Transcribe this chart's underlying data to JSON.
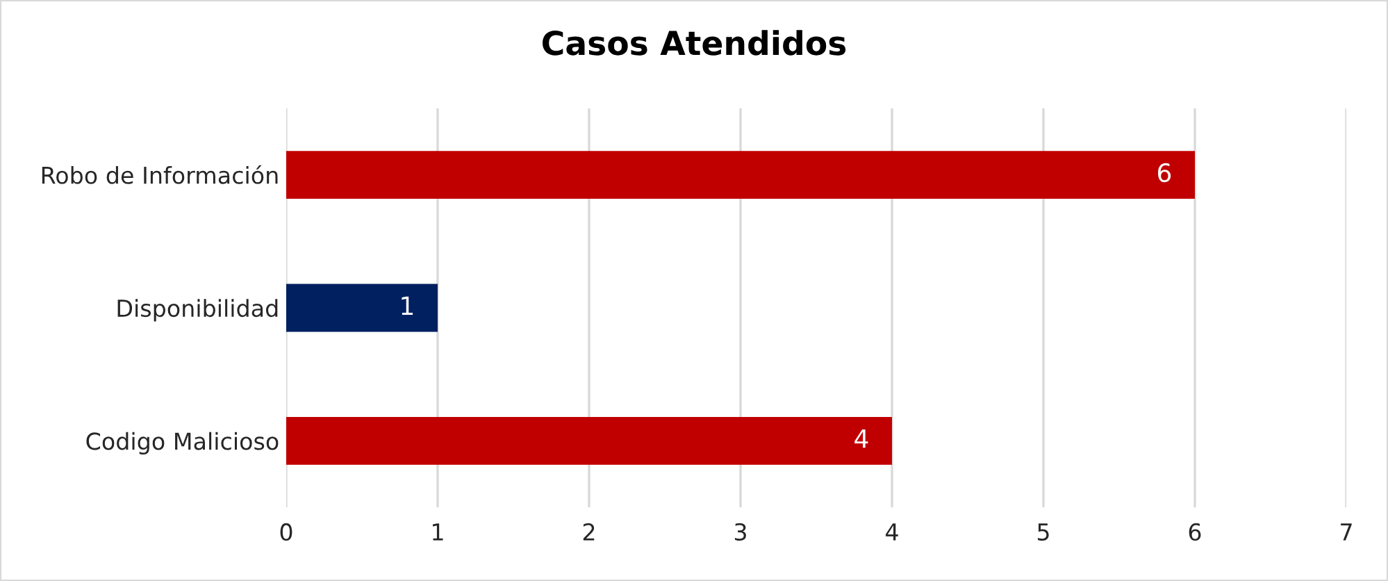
{
  "chart_data": {
    "type": "bar",
    "title": "Casos Atendidos",
    "orientation": "horizontal",
    "categories": [
      "Robo de Información",
      "Disponibilidad",
      "Codigo Malicioso"
    ],
    "values": [
      6,
      1,
      4
    ],
    "colors": [
      "#c00000",
      "#002060",
      "#c00000"
    ],
    "xlim": [
      0,
      7
    ],
    "xticks": [
      0,
      1,
      2,
      3,
      4,
      5,
      6,
      7
    ],
    "grid": "x",
    "data_labels": true,
    "legend": false
  }
}
